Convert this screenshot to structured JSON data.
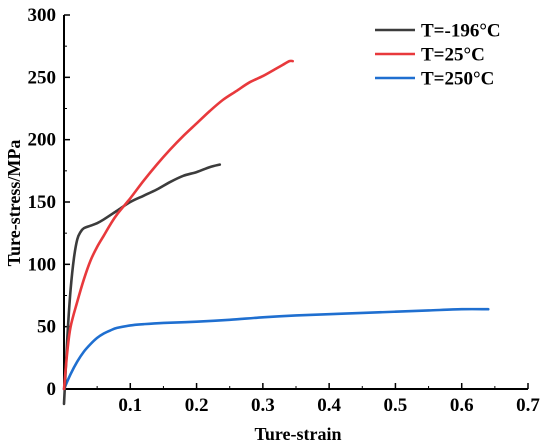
{
  "chart_data": {
    "type": "line",
    "title": "",
    "xlabel": "Ture-strain",
    "ylabel": "Ture-stress/MPa",
    "xlim": [
      0,
      0.7
    ],
    "ylim": [
      0,
      300
    ],
    "x_ticks": [
      0,
      0.1,
      0.2,
      0.3,
      0.4,
      0.5,
      0.6,
      0.7
    ],
    "x_tick_labels": [
      "0",
      "0.1",
      "0.2",
      "0.3",
      "0.4",
      "0.5",
      "0.6",
      "0.7"
    ],
    "y_ticks": [
      0,
      50,
      100,
      150,
      200,
      250,
      300
    ],
    "y_tick_labels": [
      "0",
      "50",
      "100",
      "150",
      "200",
      "250",
      "300"
    ],
    "grid": false,
    "legend_position": "top-right",
    "series": [
      {
        "name": "T=-196°C",
        "color": "#3c3c3c",
        "x": [
          0,
          0.003,
          0.006,
          0.01,
          0.015,
          0.02,
          0.025,
          0.03,
          0.04,
          0.05,
          0.06,
          0.08,
          0.1,
          0.12,
          0.14,
          0.16,
          0.18,
          0.2,
          0.22,
          0.235
        ],
        "y": [
          -12,
          20,
          50,
          80,
          105,
          120,
          126,
          129,
          131,
          133,
          136,
          143,
          150,
          155,
          160,
          166,
          171,
          174,
          178,
          180
        ]
      },
      {
        "name": "T=25°C",
        "color": "#e8393c",
        "x": [
          0,
          0.005,
          0.01,
          0.02,
          0.03,
          0.04,
          0.05,
          0.06,
          0.07,
          0.08,
          0.1,
          0.12,
          0.14,
          0.16,
          0.18,
          0.2,
          0.22,
          0.24,
          0.26,
          0.28,
          0.3,
          0.32,
          0.33,
          0.34,
          0.345
        ],
        "y": [
          0,
          30,
          50,
          70,
          88,
          103,
          114,
          123,
          132,
          140,
          153,
          167,
          180,
          192,
          203,
          213,
          223,
          232,
          239,
          246,
          251,
          257,
          260,
          263,
          263
        ]
      },
      {
        "name": "T=250°C",
        "color": "#1f6fd0",
        "x": [
          0,
          0.01,
          0.02,
          0.03,
          0.04,
          0.05,
          0.06,
          0.07,
          0.08,
          0.1,
          0.12,
          0.15,
          0.2,
          0.25,
          0.3,
          0.35,
          0.4,
          0.45,
          0.5,
          0.55,
          0.6,
          0.64
        ],
        "y": [
          0,
          12,
          22,
          30,
          36,
          41,
          44.5,
          47,
          49,
          51,
          52,
          53,
          54,
          55.5,
          57.5,
          59,
          60,
          61,
          62,
          63,
          64,
          64
        ]
      }
    ]
  }
}
